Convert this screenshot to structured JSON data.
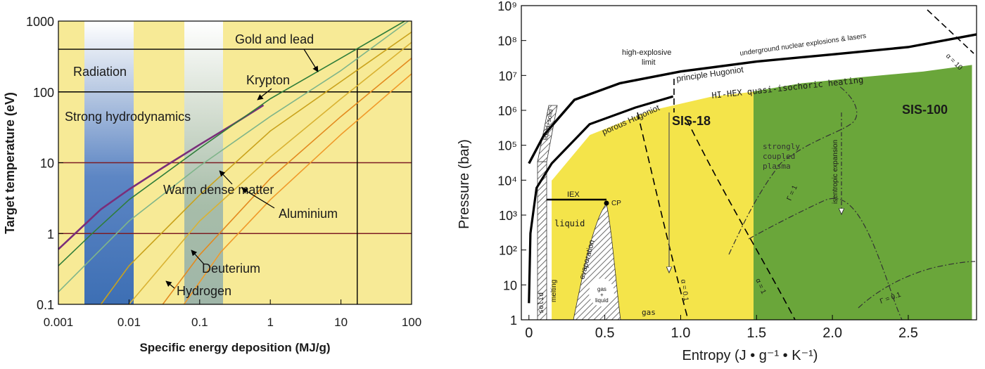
{
  "charts": [
    {
      "type": "line",
      "xlabel": "Specific energy deposition (MJ/g)",
      "ylabel": "Target temperature (eV)",
      "xscale": "log",
      "yscale": "log",
      "xlim": [
        0.001,
        100
      ],
      "ylim": [
        0.1,
        1000
      ],
      "xticks": [
        0.001,
        0.01,
        0.1,
        1,
        10,
        100
      ],
      "xtick_labels": [
        "0.001",
        "0.01",
        "0.1",
        "1",
        "10",
        "100"
      ],
      "yticks": [
        0.1,
        1,
        10,
        100,
        1000
      ],
      "ytick_labels": [
        "0.1",
        "1",
        "10",
        "100",
        "1000"
      ],
      "colors": {
        "background": "#f7ea96",
        "band": "#3d6fb4",
        "band_light": "#ffffff",
        "band_mid": "#9fb6a8",
        "dark_line": "#000000",
        "red_line": "#7c1d24"
      },
      "region_labels": {
        "radiation": "Radiation",
        "strong_hydro": "Strong hydrodynamics",
        "warm_dense": "Warm dense matter"
      },
      "curve_labels": {
        "gold_lead": "Gold and lead",
        "krypton": "Krypton",
        "aluminium": "Aluminium",
        "deuterium": "Deuterium",
        "hydrogen": "Hydrogen"
      },
      "reference_lines": {
        "black_horizontal": [
          400,
          100
        ],
        "red_horizontal": [
          10,
          1
        ],
        "black_vertical": 17
      },
      "series": [
        {
          "material": "purple",
          "color": "#7a2e7a",
          "points": [
            [
              0.001,
              0.6
            ],
            [
              0.004,
              2.2
            ],
            [
              0.01,
              4.2
            ],
            [
              0.03,
              8.5
            ],
            [
              0.1,
              18
            ],
            [
              0.3,
              35
            ],
            [
              0.8,
              65
            ]
          ]
        },
        {
          "material": "dark-green",
          "color": "#2f7d3a",
          "points": [
            [
              0.001,
              0.35
            ],
            [
              0.003,
              1.0
            ],
            [
              0.01,
              3.0
            ],
            [
              0.1,
              16
            ],
            [
              1,
              80
            ],
            [
              10,
              300
            ],
            [
              80,
              1000
            ]
          ]
        },
        {
          "material": "light-green",
          "color": "#7fb58a",
          "points": [
            [
              0.001,
              0.15
            ],
            [
              0.01,
              1.5
            ],
            [
              0.1,
              9
            ],
            [
              1,
              45
            ],
            [
              10,
              200
            ],
            [
              90,
              1000
            ]
          ]
        },
        {
          "material": "yellow-1",
          "color": "#c9a21c",
          "points": [
            [
              0.004,
              0.1
            ],
            [
              0.01,
              0.35
            ],
            [
              0.1,
              3.5
            ],
            [
              1,
              28
            ],
            [
              10,
              140
            ],
            [
              100,
              700
            ]
          ]
        },
        {
          "material": "yellow-2",
          "color": "#d9b233",
          "points": [
            [
              0.01,
              0.1
            ],
            [
              0.1,
              1.5
            ],
            [
              1,
              12
            ],
            [
              10,
              80
            ],
            [
              100,
              500
            ]
          ]
        },
        {
          "material": "orange-1",
          "color": "#e38a1f",
          "points": [
            [
              0.03,
              0.1
            ],
            [
              0.1,
              0.5
            ],
            [
              1,
              6
            ],
            [
              10,
              45
            ],
            [
              100,
              300
            ]
          ]
        },
        {
          "material": "orange-2",
          "color": "#f09a2a",
          "points": [
            [
              0.06,
              0.1
            ],
            [
              0.2,
              0.55
            ],
            [
              1,
              3
            ],
            [
              10,
              25
            ],
            [
              100,
              180
            ]
          ]
        }
      ]
    },
    {
      "type": "area",
      "xlabel": "Entropy (J • g⁻¹ • K⁻¹)",
      "ylabel": "Pressure (bar)",
      "xscale": "linear",
      "yscale": "log",
      "xlim": [
        -0.05,
        2.95
      ],
      "ylim": [
        1,
        1000000000
      ],
      "xticks": [
        0,
        0.5,
        1.0,
        1.5,
        2.0,
        2.5
      ],
      "xtick_labels": [
        "0",
        "0.5",
        "1.0",
        "1.5",
        "2.0",
        "2.5"
      ],
      "ytick_labels": [
        "1",
        "10",
        "10²",
        "10³",
        "10⁴",
        "10⁵",
        "10⁶",
        "10⁷",
        "10⁸",
        "10⁹"
      ],
      "colors": {
        "sis18": "#f4e44a",
        "sis100": "#6aa63a"
      },
      "region_labels": {
        "sis18": "SIS-18",
        "sis100": "SIS-100"
      },
      "annotations": {
        "hi_explosive": "high-explosive",
        "limit": "limit",
        "underground": "underground nuclear explosions & lasers",
        "alpha10": "α = 10",
        "principle": "principle Hugoniot",
        "hihex": "HI-HEX quasi-isochoric heating",
        "porous": "porous Hugoniot",
        "liquid_solid": "liquid+solid",
        "iex": "IEX",
        "cp": "CP",
        "liquid": "liquid",
        "evaporation": "evaporation",
        "melting": "melting",
        "solid": "solid",
        "gas_liquid_1": "gas",
        "gas_liquid_2": "+",
        "gas_liquid_3": "liquid",
        "gas": "gas",
        "alpha01": "α = 0.1",
        "alpha1": "α = 1",
        "strongly": "strongly",
        "coupled": "coupled",
        "plasma": "plasma",
        "isentropic": "isentropic expansion",
        "gamma1": "Γ = 1",
        "gamma01": "Γ = 0.1"
      },
      "curves": {
        "principle_hugoniot": [
          [
            0.0,
            30000
          ],
          [
            0.1,
            200000
          ],
          [
            0.3,
            2000000
          ],
          [
            0.6,
            6000000
          ],
          [
            1.0,
            13000000
          ],
          [
            1.5,
            25000000
          ],
          [
            2.0,
            40000000
          ],
          [
            2.5,
            65000000
          ],
          [
            2.95,
            150000000
          ]
        ],
        "porous_hugoniot": [
          [
            0.0,
            3
          ],
          [
            0.01,
            300
          ],
          [
            0.05,
            6000
          ],
          [
            0.15,
            30000
          ],
          [
            0.4,
            400000
          ],
          [
            0.7,
            1200000
          ],
          [
            0.95,
            2500000
          ]
        ],
        "sis18_boundary": [
          [
            0.15,
            10000
          ],
          [
            0.4,
            200000
          ],
          [
            0.8,
            1000000
          ],
          [
            1.2,
            2500000
          ],
          [
            1.48,
            3500000
          ]
        ],
        "sis100_boundary": [
          [
            1.48,
            3500000
          ],
          [
            1.8,
            6000000
          ],
          [
            2.2,
            9000000
          ],
          [
            2.6,
            13000000
          ],
          [
            2.92,
            20000000
          ]
        ]
      }
    }
  ]
}
